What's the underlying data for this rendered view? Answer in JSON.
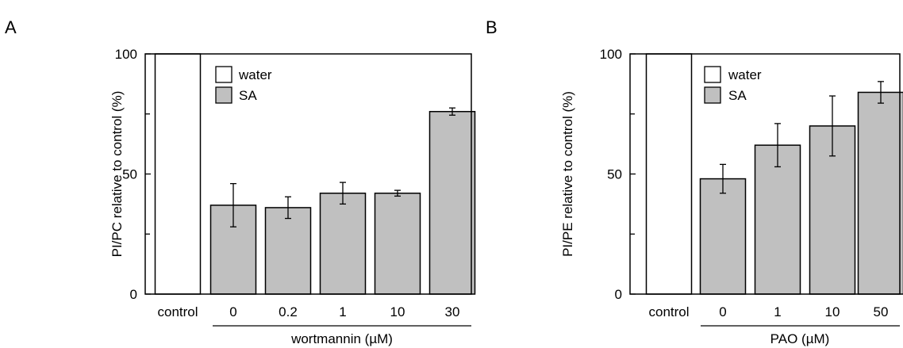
{
  "colors": {
    "water": "#ffffff",
    "SA": "#c0c0c0",
    "stroke": "#000000"
  },
  "chart_data": [
    {
      "type": "bar",
      "panel_label": "A",
      "ylabel": "PI/PC relative to control (%)",
      "xlabel": "wortmannin (µM)",
      "ylim": [
        0,
        100
      ],
      "yticks_labeled": [
        "0",
        "50",
        "100"
      ],
      "y_minor_ticks": [
        25,
        75
      ],
      "categories": [
        "control",
        "0",
        "0.2",
        "1",
        "10",
        "30"
      ],
      "group_underline_categories": [
        "0",
        "0.2",
        "1",
        "10",
        "30"
      ],
      "series": [
        {
          "name": "water",
          "values": [
            100,
            null,
            null,
            null,
            null,
            null
          ],
          "errors": [
            0,
            null,
            null,
            null,
            null,
            null
          ]
        },
        {
          "name": "SA",
          "values": [
            null,
            37,
            36,
            42,
            42,
            76
          ],
          "errors": [
            null,
            9,
            4.5,
            4.5,
            1.2,
            1.5
          ]
        }
      ],
      "legend": {
        "position": "top-center",
        "entries": [
          "water",
          "SA"
        ]
      }
    },
    {
      "type": "bar",
      "panel_label": "B",
      "ylabel": "PI/PE relative to control (%)",
      "xlabel": "PAO (µM)",
      "ylim": [
        0,
        100
      ],
      "yticks_labeled": [
        "0",
        "50",
        "100"
      ],
      "y_minor_ticks": [
        25,
        75
      ],
      "categories": [
        "control",
        "0",
        "1",
        "10",
        "50"
      ],
      "group_underline_categories": [
        "0",
        "1",
        "10",
        "50"
      ],
      "series": [
        {
          "name": "water",
          "values": [
            100,
            null,
            null,
            null,
            null
          ],
          "errors": [
            0,
            null,
            null,
            null,
            null
          ]
        },
        {
          "name": "SA",
          "values": [
            null,
            48,
            62,
            70,
            84
          ],
          "errors": [
            null,
            6,
            9,
            12.5,
            4.5
          ]
        }
      ],
      "legend": {
        "position": "top-center",
        "entries": [
          "water",
          "SA"
        ]
      }
    }
  ]
}
